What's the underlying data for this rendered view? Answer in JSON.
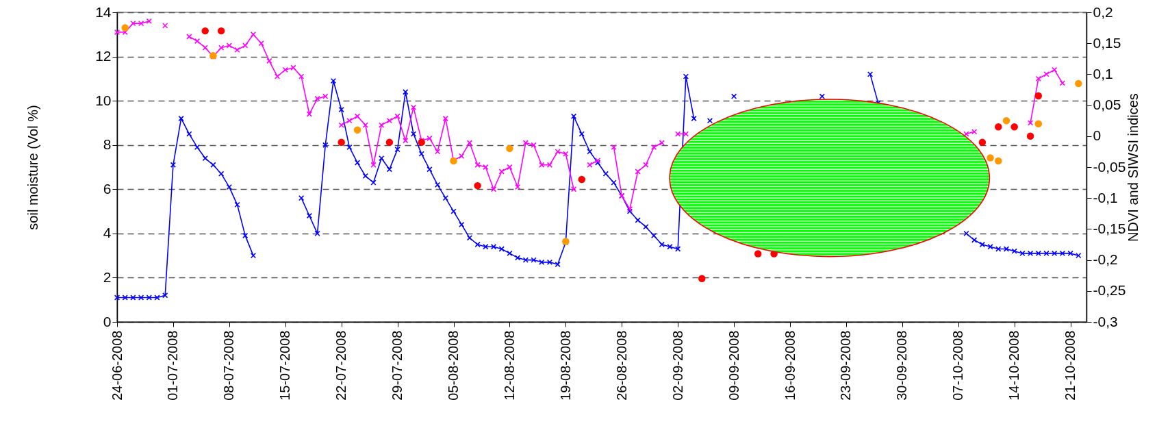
{
  "chart_data": {
    "type": "line",
    "ylabel": "soil moisture (Vol %)",
    "y2label": "NDVI and SIWSI indices",
    "grid": "y",
    "x": [
      "2008-06-24",
      "2008-06-25",
      "2008-06-26",
      "2008-06-27",
      "2008-06-28",
      "2008-06-29",
      "2008-06-30",
      "2008-07-01",
      "2008-07-02",
      "2008-07-03",
      "2008-07-04",
      "2008-07-05",
      "2008-07-06",
      "2008-07-07",
      "2008-07-08",
      "2008-07-09",
      "2008-07-10",
      "2008-07-11",
      "2008-07-12",
      "2008-07-13",
      "2008-07-14",
      "2008-07-15",
      "2008-07-16",
      "2008-07-17",
      "2008-07-18",
      "2008-07-19",
      "2008-07-20",
      "2008-07-21",
      "2008-07-22",
      "2008-07-23",
      "2008-07-24",
      "2008-07-25",
      "2008-07-26",
      "2008-07-27",
      "2008-07-28",
      "2008-07-29",
      "2008-07-30",
      "2008-07-31",
      "2008-08-01",
      "2008-08-02",
      "2008-08-03",
      "2008-08-04",
      "2008-08-05",
      "2008-08-06",
      "2008-08-07",
      "2008-08-08",
      "2008-08-09",
      "2008-08-10",
      "2008-08-11",
      "2008-08-12",
      "2008-08-13",
      "2008-08-14",
      "2008-08-15",
      "2008-08-16",
      "2008-08-17",
      "2008-08-18",
      "2008-08-19",
      "2008-08-20",
      "2008-08-21",
      "2008-08-22",
      "2008-08-23",
      "2008-08-24",
      "2008-08-25",
      "2008-08-26",
      "2008-08-27",
      "2008-08-28",
      "2008-08-29",
      "2008-08-30",
      "2008-08-31",
      "2008-09-01",
      "2008-09-02",
      "2008-09-03",
      "2008-09-04",
      "2008-09-05",
      "2008-09-06",
      "2008-09-07",
      "2008-09-08",
      "2008-09-09",
      "2008-09-10",
      "2008-09-11",
      "2008-09-12",
      "2008-09-13",
      "2008-09-14",
      "2008-09-15",
      "2008-09-16",
      "2008-09-17",
      "2008-09-18",
      "2008-09-19",
      "2008-09-20",
      "2008-09-21",
      "2008-09-22",
      "2008-09-23",
      "2008-09-24",
      "2008-09-25",
      "2008-09-26",
      "2008-09-27",
      "2008-09-28",
      "2008-09-29",
      "2008-09-30",
      "2008-10-01",
      "2008-10-02",
      "2008-10-03",
      "2008-10-04",
      "2008-10-05",
      "2008-10-06",
      "2008-10-07",
      "2008-10-08",
      "2008-10-09",
      "2008-10-10",
      "2008-10-11",
      "2008-10-12",
      "2008-10-13",
      "2008-10-14",
      "2008-10-15",
      "2008-10-16",
      "2008-10-17",
      "2008-10-18",
      "2008-10-19",
      "2008-10-20",
      "2008-10-21",
      "2008-10-22"
    ],
    "xlim": [
      "2008-06-24",
      "2008-10-23"
    ],
    "xticks": [
      {
        "value": "2008-06-24",
        "label": "24-06-2008"
      },
      {
        "value": "2008-07-01",
        "label": "01-07-2008"
      },
      {
        "value": "2008-07-08",
        "label": "08-07-2008"
      },
      {
        "value": "2008-07-15",
        "label": "15-07-2008"
      },
      {
        "value": "2008-07-22",
        "label": "22-07-2008"
      },
      {
        "value": "2008-07-29",
        "label": "29-07-2008"
      },
      {
        "value": "2008-08-05",
        "label": "05-08-2008"
      },
      {
        "value": "2008-08-12",
        "label": "12-08-2008"
      },
      {
        "value": "2008-08-19",
        "label": "19-08-2008"
      },
      {
        "value": "2008-08-26",
        "label": "26-08-2008"
      },
      {
        "value": "2008-09-02",
        "label": "02-09-2008"
      },
      {
        "value": "2008-09-09",
        "label": "09-09-2008"
      },
      {
        "value": "2008-09-16",
        "label": "16-09-2008"
      },
      {
        "value": "2008-09-23",
        "label": "23-09-2008"
      },
      {
        "value": "2008-09-30",
        "label": "30-09-2008"
      },
      {
        "value": "2008-10-07",
        "label": "07-10-2008"
      },
      {
        "value": "2008-10-14",
        "label": "14-10-2008"
      },
      {
        "value": "2008-10-21",
        "label": "21-10-2008"
      }
    ],
    "ylim": [
      0,
      14
    ],
    "yticks": [
      0,
      2,
      4,
      6,
      8,
      10,
      12,
      14
    ],
    "y2lim": [
      -0.3,
      0.2
    ],
    "y2ticks": [
      {
        "value": -0.3,
        "label": "-0,3"
      },
      {
        "value": -0.25,
        "label": "-0,25"
      },
      {
        "value": -0.2,
        "label": "-0,2"
      },
      {
        "value": -0.15,
        "label": "-0,15"
      },
      {
        "value": -0.1,
        "label": "-0,1"
      },
      {
        "value": -0.05,
        "label": "-0,05"
      },
      0,
      {
        "value": 0.05,
        "label": "0,05"
      },
      {
        "value": 0.1,
        "label": "0,1"
      },
      {
        "value": 0.15,
        "label": "0,15"
      },
      {
        "value": 0.2,
        "label": "0,2"
      }
    ],
    "series": [
      {
        "color": "#0000ff",
        "marker": "cross",
        "values": [
          1.1,
          1.1,
          1.1,
          1.1,
          1.1,
          1.1,
          1.2,
          7.1,
          9.2,
          8.5,
          7.9,
          7.4,
          7.1,
          6.7,
          6.1,
          5.3,
          3.9,
          3.0,
          null,
          null,
          null,
          null,
          null,
          5.6,
          4.8,
          4.0,
          8.0,
          10.9,
          9.6,
          7.9,
          7.2,
          6.6,
          6.3,
          7.4,
          6.9,
          7.8,
          10.4,
          8.5,
          7.6,
          6.9,
          6.2,
          5.6,
          5.0,
          4.4,
          3.8,
          3.5,
          3.4,
          3.4,
          3.3,
          3.1,
          2.9,
          2.8,
          2.8,
          2.7,
          2.7,
          2.6,
          3.6,
          9.3,
          8.5,
          7.7,
          7.2,
          6.7,
          6.3,
          5.7,
          5.0,
          4.6,
          4.3,
          3.9,
          3.5,
          3.4,
          3.3,
          11.1,
          9.2,
          null,
          9.1,
          null,
          null,
          10.2,
          null,
          null,
          null,
          null,
          null,
          null,
          null,
          null,
          null,
          null,
          10.2,
          null,
          null,
          null,
          null,
          null,
          11.2,
          9.9,
          null,
          null,
          null,
          null,
          null,
          null,
          null,
          null,
          null,
          null,
          4.0,
          3.7,
          3.5,
          3.4,
          3.3,
          3.3,
          3.2,
          3.1,
          3.1,
          3.1,
          3.1,
          3.1,
          3.1,
          3.1,
          3.0
        ]
      },
      {
        "color": "#ff00ff",
        "marker": "cross",
        "values": [
          13.1,
          13.1,
          13.5,
          13.5,
          13.6,
          null,
          13.4,
          null,
          null,
          12.9,
          12.7,
          12.4,
          12.0,
          12.4,
          12.5,
          12.3,
          12.5,
          13.0,
          12.6,
          11.8,
          11.1,
          11.4,
          11.5,
          11.1,
          9.4,
          10.1,
          10.2,
          null,
          8.9,
          9.1,
          9.3,
          8.9,
          7.1,
          8.9,
          9.1,
          9.3,
          8.2,
          9.7,
          8.2,
          8.3,
          7.7,
          9.2,
          7.3,
          7.5,
          8.1,
          7.1,
          7.0,
          6.0,
          6.8,
          7.0,
          6.1,
          8.1,
          8.0,
          7.1,
          7.1,
          7.7,
          7.6,
          6.0,
          null,
          7.1,
          7.3,
          null,
          7.9,
          5.7,
          5.1,
          6.8,
          7.1,
          7.9,
          8.1,
          null,
          8.5,
          8.5,
          null,
          null,
          null,
          null,
          null,
          null,
          null,
          null,
          null,
          null,
          null,
          null,
          null,
          null,
          null,
          null,
          null,
          null,
          null,
          null,
          null,
          null,
          null,
          null,
          null,
          null,
          null,
          null,
          null,
          null,
          null,
          null,
          null,
          null,
          8.5,
          8.6,
          null,
          null,
          null,
          null,
          null,
          null,
          9.0,
          11.0,
          11.2,
          11.4,
          10.8,
          null,
          null
        ]
      },
      {
        "type": "scatter",
        "axis": "y2",
        "color": "#ff0000",
        "marker": "circle",
        "x": [
          "2008-07-05",
          "2008-07-07",
          "2008-07-22",
          "2008-07-28",
          "2008-08-01",
          "2008-08-08",
          "2008-08-21",
          "2008-09-05",
          "2008-09-12",
          "2008-09-14",
          "2008-10-10",
          "2008-10-12",
          "2008-10-14",
          "2008-10-16",
          "2008-10-17"
        ],
        "values": [
          0.17,
          0.17,
          -0.01,
          -0.01,
          -0.01,
          -0.08,
          -0.07,
          -0.23,
          -0.19,
          -0.19,
          -0.01,
          0.015,
          0.015,
          0,
          0.065
        ]
      },
      {
        "type": "scatter",
        "axis": "y2",
        "color": "#ff9900",
        "marker": "circle",
        "x": [
          "2008-06-25",
          "2008-07-06",
          "2008-07-24",
          "2008-08-05",
          "2008-08-12",
          "2008-08-19",
          "2008-10-11",
          "2008-10-12",
          "2008-10-13",
          "2008-10-17",
          "2008-10-22"
        ],
        "values": [
          0.175,
          0.13,
          0.01,
          -0.04,
          -0.02,
          -0.17,
          -0.035,
          -0.04,
          0.025,
          0.02,
          0.085
        ]
      }
    ]
  }
}
